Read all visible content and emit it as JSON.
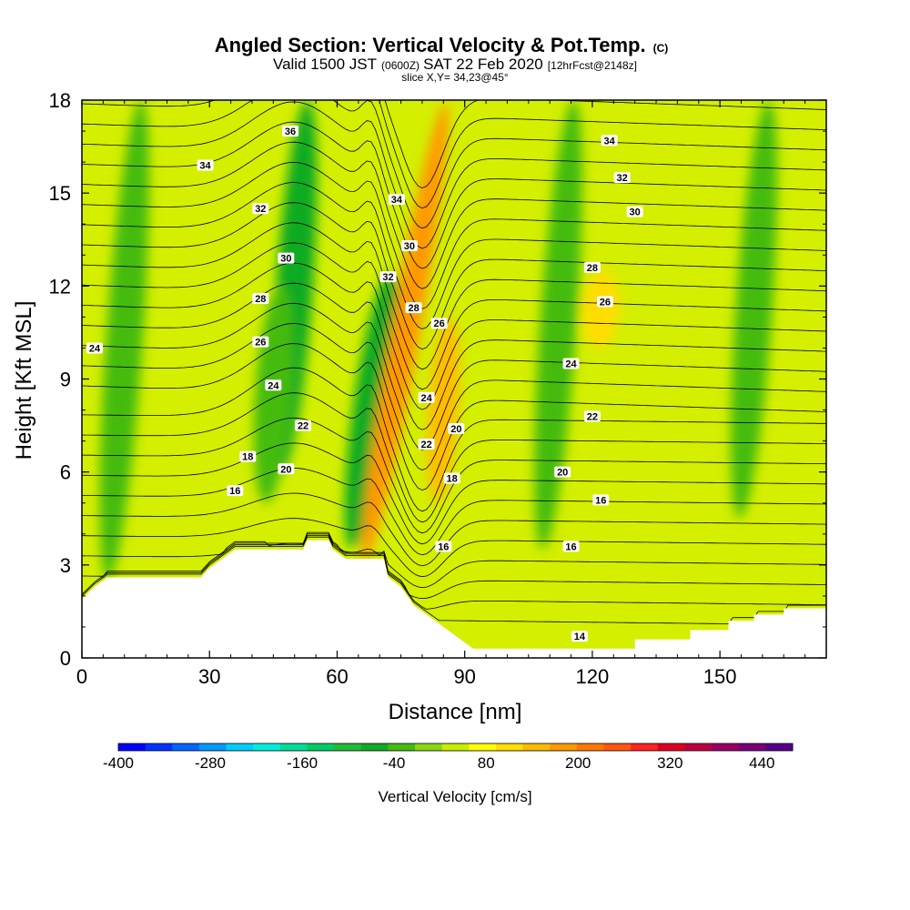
{
  "title": {
    "main": "Angled Section: Vertical Velocity & Pot.Temp.",
    "unit_tag": "(C)",
    "valid_prefix": "Valid 1500 JST",
    "valid_utc": "(0600Z)",
    "valid_date": "SAT 22 Feb 2020",
    "forecast": "[12hrFcst@2148z]",
    "slice": "slice X,Y= 34,23@45°"
  },
  "axes": {
    "xlabel": "Distance [nm]",
    "ylabel": "Height [Kft MSL]",
    "xlim": [
      0,
      175
    ],
    "ylim": [
      0,
      18
    ],
    "x_ticks": [
      0,
      30,
      60,
      90,
      120,
      150
    ],
    "y_ticks": [
      0,
      3,
      6,
      9,
      12,
      15,
      18
    ]
  },
  "colorbar": {
    "label": "Vertical Velocity [cm/s]",
    "tick_labels": [
      "-400",
      "-280",
      "-160",
      "-40",
      "80",
      "200",
      "320",
      "440"
    ],
    "tick_values": [
      -400,
      -280,
      -160,
      -40,
      80,
      200,
      320,
      440
    ],
    "range": [
      -400,
      480
    ],
    "colors": [
      "#0000ff",
      "#0033ff",
      "#0066ff",
      "#0099ff",
      "#00ccff",
      "#00eedd",
      "#00dd99",
      "#00cc66",
      "#22bb33",
      "#11aa22",
      "#44bb11",
      "#88d711",
      "#c8ee00",
      "#ffff00",
      "#ffdd00",
      "#ffbb00",
      "#ff9900",
      "#ff7700",
      "#ff5511",
      "#ff2222",
      "#dd0022",
      "#bb0044",
      "#990066",
      "#770077",
      "#550088"
    ]
  },
  "chart_data": {
    "type": "heatmap",
    "xlabel": "Distance [nm]",
    "ylabel": "Height [Kft MSL]",
    "terrain": [
      [
        0,
        1.9
      ],
      [
        3,
        2.3
      ],
      [
        6,
        2.6
      ],
      [
        28,
        2.6
      ],
      [
        30,
        2.9
      ],
      [
        33,
        3.2
      ],
      [
        36,
        3.5
      ],
      [
        52,
        3.5
      ],
      [
        53,
        3.8
      ],
      [
        58,
        3.8
      ],
      [
        59,
        3.5
      ],
      [
        62,
        3.2
      ],
      [
        71,
        3.2
      ],
      [
        72,
        2.6
      ],
      [
        75,
        2.3
      ],
      [
        78,
        1.7
      ],
      [
        81,
        1.4
      ],
      [
        84,
        1.1
      ],
      [
        87,
        0.8
      ],
      [
        90,
        0.5
      ],
      [
        92,
        0.3
      ],
      [
        130,
        0.3
      ],
      [
        130,
        0.6
      ],
      [
        143,
        0.6
      ],
      [
        143,
        0.9
      ],
      [
        152,
        0.9
      ],
      [
        152,
        1.2
      ],
      [
        158,
        1.2
      ],
      [
        158,
        1.4
      ],
      [
        165,
        1.4
      ],
      [
        165,
        1.6
      ],
      [
        175,
        1.6
      ]
    ],
    "velocity_features": [
      {
        "x": 68,
        "y_range": [
          3.5,
          12.5
        ],
        "value": -80
      },
      {
        "x": 76,
        "y_range": [
          3.0,
          18.0
        ],
        "value": 170
      },
      {
        "x": 85,
        "y_range": [
          5.0,
          11.0
        ],
        "value": 140
      },
      {
        "x": 50,
        "y_range": [
          6.0,
          18.0
        ],
        "value": -60
      },
      {
        "x": 45,
        "y_range": [
          5.0,
          12.0
        ],
        "value": -40
      },
      {
        "x": 10,
        "y_range": [
          2.5,
          18.0
        ],
        "value": -20
      },
      {
        "x": 112,
        "y_range": [
          3.5,
          18.0
        ],
        "value": -20
      },
      {
        "x": 158,
        "y_range": [
          4.5,
          18.0
        ],
        "value": -20
      },
      {
        "x": 122,
        "y_range": [
          10.0,
          12.5
        ],
        "value": 100
      }
    ],
    "isentropes": [
      {
        "theta": 14,
        "label_x": 117,
        "label_y": 0.7
      },
      {
        "theta": 16,
        "label_x": 36,
        "label_y": 5.4
      },
      {
        "theta": 16,
        "label_x": 85,
        "label_y": 3.6
      },
      {
        "theta": 16,
        "label_x": 115,
        "label_y": 3.6
      },
      {
        "theta": 16,
        "label_x": 122,
        "label_y": 5.1
      },
      {
        "theta": 18,
        "label_x": 39,
        "label_y": 6.5
      },
      {
        "theta": 18,
        "label_x": 87,
        "label_y": 5.8
      },
      {
        "theta": 20,
        "label_x": 48,
        "label_y": 6.1
      },
      {
        "theta": 20,
        "label_x": 88,
        "label_y": 7.4
      },
      {
        "theta": 20,
        "label_x": 113,
        "label_y": 6.0
      },
      {
        "theta": 22,
        "label_x": 52,
        "label_y": 7.5
      },
      {
        "theta": 22,
        "label_x": 81,
        "label_y": 6.9
      },
      {
        "theta": 22,
        "label_x": 120,
        "label_y": 7.8
      },
      {
        "theta": 24,
        "label_x": 3,
        "label_y": 10.0
      },
      {
        "theta": 24,
        "label_x": 45,
        "label_y": 8.8
      },
      {
        "theta": 24,
        "label_x": 81,
        "label_y": 8.4
      },
      {
        "theta": 24,
        "label_x": 115,
        "label_y": 9.5
      },
      {
        "theta": 26,
        "label_x": 42,
        "label_y": 10.2
      },
      {
        "theta": 26,
        "label_x": 84,
        "label_y": 10.8
      },
      {
        "theta": 26,
        "label_x": 123,
        "label_y": 11.5
      },
      {
        "theta": 28,
        "label_x": 42,
        "label_y": 11.6
      },
      {
        "theta": 28,
        "label_x": 78,
        "label_y": 11.3
      },
      {
        "theta": 28,
        "label_x": 120,
        "label_y": 12.6
      },
      {
        "theta": 30,
        "label_x": 48,
        "label_y": 12.9
      },
      {
        "theta": 30,
        "label_x": 77,
        "label_y": 13.3
      },
      {
        "theta": 30,
        "label_x": 130,
        "label_y": 14.4
      },
      {
        "theta": 32,
        "label_x": 42,
        "label_y": 14.5
      },
      {
        "theta": 32,
        "label_x": 72,
        "label_y": 12.3
      },
      {
        "theta": 32,
        "label_x": 127,
        "label_y": 15.5
      },
      {
        "theta": 34,
        "label_x": 29,
        "label_y": 15.9
      },
      {
        "theta": 34,
        "label_x": 74,
        "label_y": 14.8
      },
      {
        "theta": 34,
        "label_x": 124,
        "label_y": 16.7
      },
      {
        "theta": 36,
        "label_x": 49,
        "label_y": 17.0
      }
    ]
  }
}
